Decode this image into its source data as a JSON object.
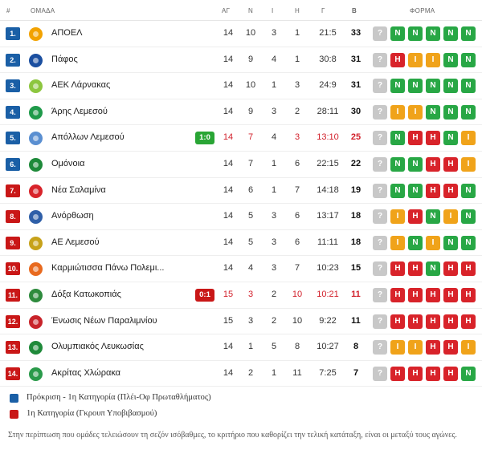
{
  "header": {
    "pos": "#",
    "team": "ΟΜΑΔΑ",
    "played": "ΑΓ",
    "won": "Ν",
    "drawn": "Ι",
    "lost": "Η",
    "goals": "Γ",
    "points": "Β",
    "form": "ΦΟΡΜΑ"
  },
  "rows": [
    {
      "pos": "1.",
      "zone": "blue",
      "logo_color": "#f2a200",
      "team": "ΑΠΟΕΛ",
      "live": "",
      "live_type": "",
      "p": "14",
      "w": "10",
      "d": "3",
      "l": "1",
      "g": "21:5",
      "pts": "33",
      "highlight": false,
      "form": [
        "?",
        "N",
        "N",
        "N",
        "N",
        "N"
      ]
    },
    {
      "pos": "2.",
      "zone": "blue",
      "logo_color": "#1b4fa0",
      "team": "Πάφος",
      "live": "",
      "live_type": "",
      "p": "14",
      "w": "9",
      "d": "4",
      "l": "1",
      "g": "30:8",
      "pts": "31",
      "highlight": false,
      "form": [
        "?",
        "H",
        "I",
        "I",
        "N",
        "N"
      ]
    },
    {
      "pos": "3.",
      "zone": "blue",
      "logo_color": "#8dc63f",
      "team": "ΑΕΚ Λάρνακας",
      "live": "",
      "live_type": "",
      "p": "14",
      "w": "10",
      "d": "1",
      "l": "3",
      "g": "24:9",
      "pts": "31",
      "highlight": false,
      "form": [
        "?",
        "N",
        "N",
        "N",
        "N",
        "N"
      ]
    },
    {
      "pos": "4.",
      "zone": "blue",
      "logo_color": "#1f9a4a",
      "team": "Άρης Λεμεσού",
      "live": "",
      "live_type": "",
      "p": "14",
      "w": "9",
      "d": "3",
      "l": "2",
      "g": "28:11",
      "pts": "30",
      "highlight": false,
      "form": [
        "?",
        "I",
        "I",
        "N",
        "N",
        "N"
      ]
    },
    {
      "pos": "5.",
      "zone": "blue",
      "logo_color": "#5a8fd1",
      "team": "Απόλλων Λεμεσού",
      "live": "1:0",
      "live_type": "win",
      "p": "14",
      "w": "7",
      "d": "4",
      "l": "3",
      "g": "13:10",
      "pts": "25",
      "highlight": true,
      "form": [
        "?",
        "N",
        "H",
        "H",
        "N",
        "I"
      ]
    },
    {
      "pos": "6.",
      "zone": "blue",
      "logo_color": "#1e8a3a",
      "team": "Ομόνοια",
      "live": "",
      "live_type": "",
      "p": "14",
      "w": "7",
      "d": "1",
      "l": "6",
      "g": "22:15",
      "pts": "22",
      "highlight": false,
      "form": [
        "?",
        "N",
        "N",
        "H",
        "H",
        "I"
      ]
    },
    {
      "pos": "7.",
      "zone": "red",
      "logo_color": "#d8232a",
      "team": "Νέα Σαλαμίνα",
      "live": "",
      "live_type": "",
      "p": "14",
      "w": "6",
      "d": "1",
      "l": "7",
      "g": "14:18",
      "pts": "19",
      "highlight": false,
      "form": [
        "?",
        "N",
        "N",
        "H",
        "H",
        "N"
      ]
    },
    {
      "pos": "8.",
      "zone": "red",
      "logo_color": "#2f5fa8",
      "team": "Ανόρθωση",
      "live": "",
      "live_type": "",
      "p": "14",
      "w": "5",
      "d": "3",
      "l": "6",
      "g": "13:17",
      "pts": "18",
      "highlight": false,
      "form": [
        "?",
        "I",
        "H",
        "N",
        "I",
        "N"
      ]
    },
    {
      "pos": "9.",
      "zone": "red",
      "logo_color": "#c7a21a",
      "team": "ΑΕ Λεμεσού",
      "live": "",
      "live_type": "",
      "p": "14",
      "w": "5",
      "d": "3",
      "l": "6",
      "g": "11:11",
      "pts": "18",
      "highlight": false,
      "form": [
        "?",
        "I",
        "N",
        "I",
        "N",
        "N"
      ]
    },
    {
      "pos": "10.",
      "zone": "red",
      "logo_color": "#e86a1f",
      "team": "Καρμιώτισσα Πάνω Πολεμι...",
      "live": "",
      "live_type": "",
      "p": "14",
      "w": "4",
      "d": "3",
      "l": "7",
      "g": "10:23",
      "pts": "15",
      "highlight": false,
      "form": [
        "?",
        "H",
        "H",
        "N",
        "H",
        "H"
      ]
    },
    {
      "pos": "11.",
      "zone": "red",
      "logo_color": "#2e8b3d",
      "team": "Δόξα Κατωκοπιάς",
      "live": "0:1",
      "live_type": "loss",
      "p": "15",
      "w": "3",
      "d": "2",
      "l": "10",
      "g": "10:21",
      "pts": "11",
      "highlight": true,
      "form": [
        "?",
        "H",
        "H",
        "H",
        "H",
        "H"
      ]
    },
    {
      "pos": "12.",
      "zone": "red",
      "logo_color": "#c8232a",
      "team": "Ένωσις Νέων Παραλιμνίου",
      "live": "",
      "live_type": "",
      "p": "15",
      "w": "3",
      "d": "2",
      "l": "10",
      "g": "9:22",
      "pts": "11",
      "highlight": false,
      "form": [
        "?",
        "H",
        "H",
        "H",
        "H",
        "H"
      ]
    },
    {
      "pos": "13.",
      "zone": "red",
      "logo_color": "#1f8a3a",
      "team": "Ολυμπιακός Λευκωσίας",
      "live": "",
      "live_type": "",
      "p": "14",
      "w": "1",
      "d": "5",
      "l": "8",
      "g": "10:27",
      "pts": "8",
      "highlight": false,
      "form": [
        "?",
        "I",
        "I",
        "H",
        "H",
        "I"
      ]
    },
    {
      "pos": "14.",
      "zone": "red",
      "logo_color": "#2a9a4a",
      "team": "Ακρίτας Χλώρακα",
      "live": "",
      "live_type": "",
      "p": "14",
      "w": "2",
      "d": "1",
      "l": "11",
      "g": "7:25",
      "pts": "7",
      "highlight": false,
      "form": [
        "?",
        "H",
        "H",
        "H",
        "H",
        "N"
      ]
    }
  ],
  "legend": [
    {
      "color": "blue",
      "text": "Πρόκριση - 1η Κατηγορία (Πλέι-Οφ Πρωταθλήματος)"
    },
    {
      "color": "red",
      "text": "1η Κατηγορία (Γκρουπ Υποβιβασμού)"
    }
  ],
  "note": "Στην περίπτωση που ομάδες τελειώσουν τη σεζόν ισόβαθμες, το κριτήριο που καθορίζει την τελική κατάταξη, είναι οι μεταξύ τους αγώνες."
}
